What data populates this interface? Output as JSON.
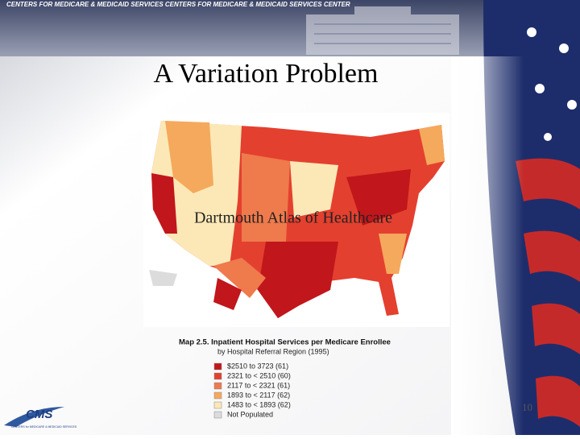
{
  "header": {
    "banner": "CENTERS FOR MEDICARE & MEDICAID SERVICES CENTERS FOR MEDICARE & MEDICAID SERVICES CENTER"
  },
  "slide": {
    "title": "A Variation Problem",
    "overlay": "Dartmouth Atlas of Healthcare",
    "page_number": "10"
  },
  "map": {
    "title": "Map 2.5.  Inpatient Hospital Services per Medicare Enrollee",
    "subtitle": "by Hospital Referral Region (1995)",
    "legend": [
      {
        "label": "$2510 to 3723 (61)",
        "color": "#c1161b"
      },
      {
        "label": "2321 to < 2510 (60)",
        "color": "#e4402f"
      },
      {
        "label": "2117 to < 2321 (61)",
        "color": "#ef7a4c"
      },
      {
        "label": "1893 to < 2117 (62)",
        "color": "#f5a95c"
      },
      {
        "label": "1483 to < 1893 (62)",
        "color": "#fce8b6"
      },
      {
        "label": "Not Populated",
        "color": "#dcdcdc"
      }
    ]
  },
  "logo": {
    "name": "CMS",
    "tagline": "CENTERS for MEDICARE & MEDICAID SERVICES"
  }
}
